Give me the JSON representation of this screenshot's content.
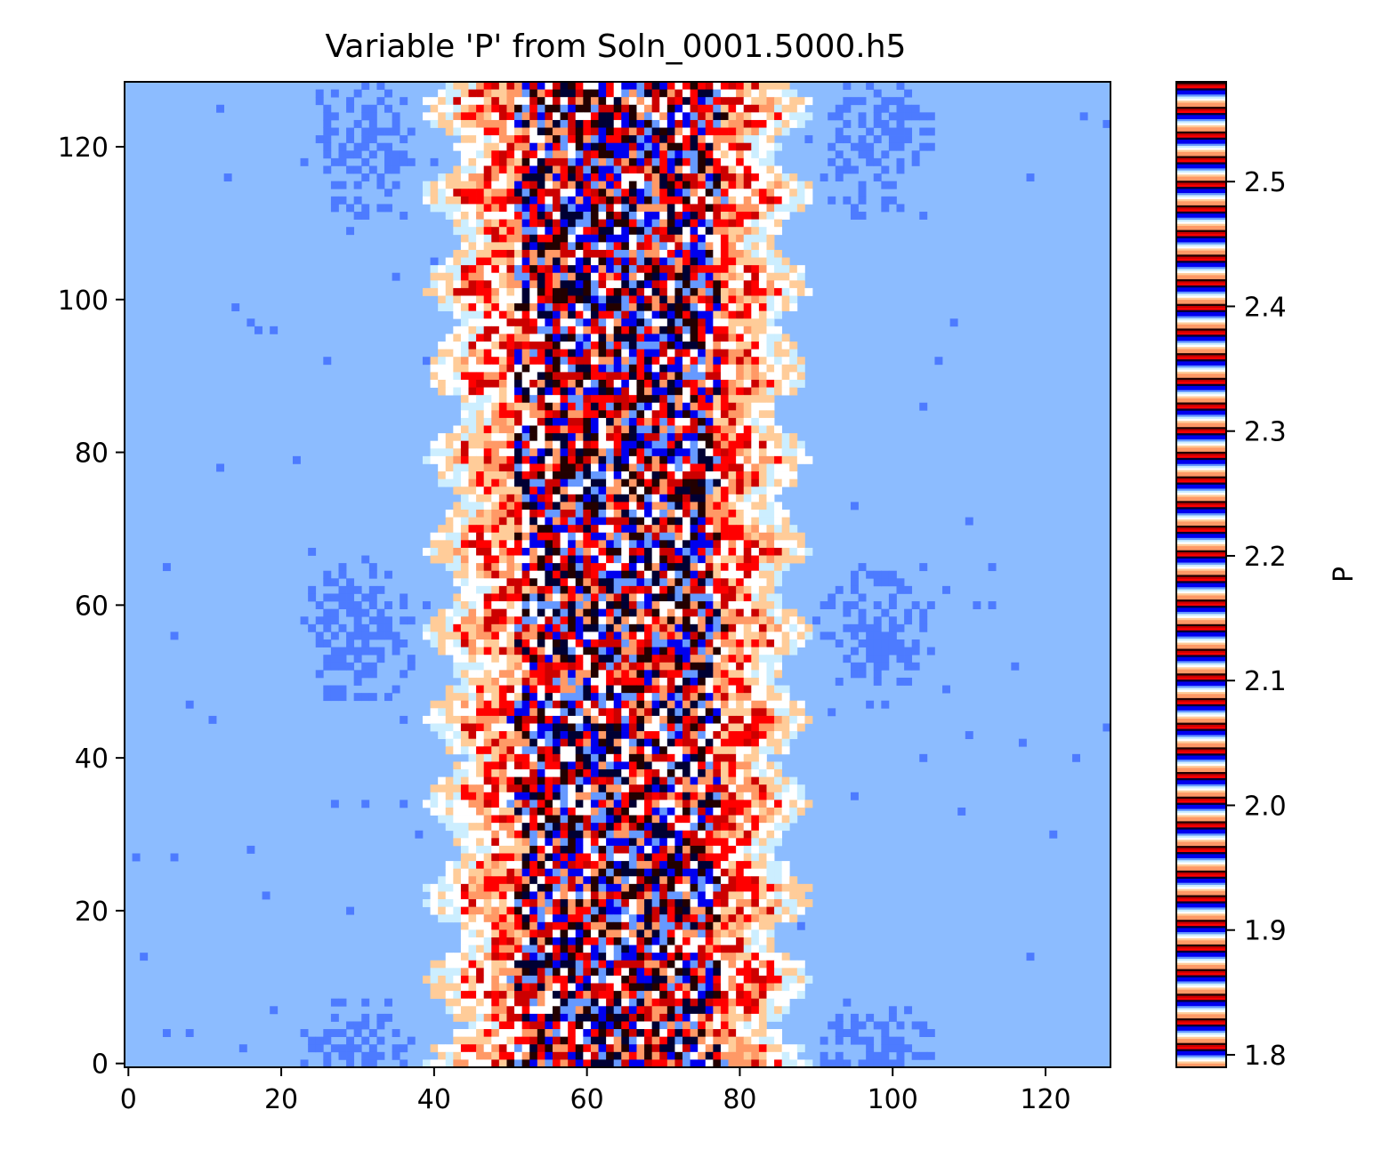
{
  "chart_data": {
    "type": "heatmap",
    "title": "Variable 'P' from Soln_0001.5000.h5",
    "xlabel": "",
    "ylabel": "",
    "grid_shape": [
      129,
      129
    ],
    "xlim": [
      -0.5,
      128.5
    ],
    "ylim": [
      128.5,
      -0.5
    ],
    "x_ticks": [
      0,
      20,
      40,
      60,
      80,
      100,
      120
    ],
    "y_ticks": [
      0,
      20,
      40,
      60,
      80,
      100,
      120
    ],
    "grid": false,
    "colorbar": {
      "label": "P",
      "range": [
        1.79,
        2.58
      ],
      "ticks": [
        1.8,
        1.9,
        2.0,
        2.1,
        2.2,
        2.3,
        2.4,
        2.5
      ],
      "tick_labels": [
        "1.8",
        "1.9",
        "2.0",
        "2.1",
        "2.2",
        "2.3",
        "2.4",
        "2.5"
      ],
      "band_count": 40,
      "band_colors": [
        "#ff9966",
        "#ffcc99",
        "#ffffff",
        "#cceeff",
        "#6699ff",
        "#0000ee",
        "#000033",
        "#ff0000",
        "#cc0000",
        "#220000"
      ]
    },
    "background_value": 2.5,
    "background_color": "#8cbcff",
    "structure": {
      "center_column": 64,
      "noisy_core_half_width": 13,
      "halo_half_width": 23,
      "secondary_blob_columns": [
        30,
        98
      ],
      "secondary_blob_rows": [
        8,
        72,
        128
      ],
      "secondary_blob_color": "#4d7bff"
    }
  }
}
